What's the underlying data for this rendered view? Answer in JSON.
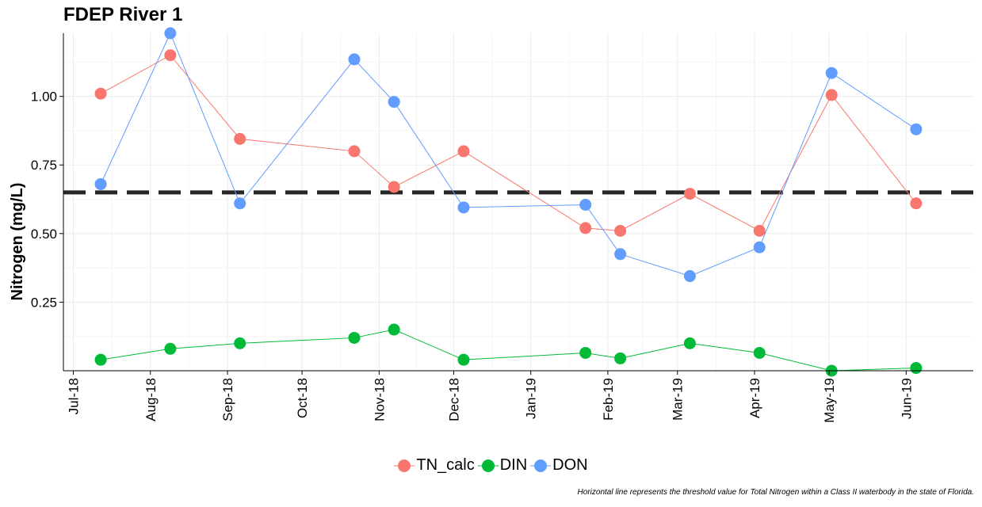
{
  "chart_data": {
    "type": "line",
    "title": "FDEP River 1",
    "xlabel": "",
    "ylabel": "Nitrogen (mg/L)",
    "caption": "Horizontal line represents the threshold value for Total Nitrogen within a Class II waterbody in the state of Florida.",
    "x_ticks": [
      "Jul-18",
      "Aug-18",
      "Sep-18",
      "Oct-18",
      "Nov-18",
      "Dec-18",
      "Jan-19",
      "Feb-19",
      "Mar-19",
      "Apr-19",
      "May-19",
      "Jun-19"
    ],
    "x_range": [
      "2018-06-27",
      "2019-06-28"
    ],
    "y_ticks": [
      "0.25",
      "0.50",
      "0.75",
      "1.00"
    ],
    "ylim": [
      0.0,
      1.23
    ],
    "threshold": 0.65,
    "grid": true,
    "legend_position": "bottom",
    "series": [
      {
        "name": "TN_calc",
        "color": "#F8766D",
        "x": [
          "2018-07-12",
          "2018-08-09",
          "2018-09-06",
          "2018-10-22",
          "2018-11-07",
          "2018-12-05",
          "2019-01-23",
          "2019-02-06",
          "2019-03-06",
          "2019-04-03",
          "2019-05-02",
          "2019-06-05"
        ],
        "y": [
          1.01,
          1.15,
          0.845,
          0.8,
          0.67,
          0.8,
          0.52,
          0.51,
          0.645,
          0.51,
          1.005,
          0.61
        ]
      },
      {
        "name": "DIN",
        "color": "#00BA38",
        "x": [
          "2018-07-12",
          "2018-08-09",
          "2018-09-06",
          "2018-10-22",
          "2018-11-07",
          "2018-12-05",
          "2019-01-23",
          "2019-02-06",
          "2019-03-06",
          "2019-04-03",
          "2019-05-02",
          "2019-06-05"
        ],
        "y": [
          0.04,
          0.08,
          0.1,
          0.12,
          0.15,
          0.04,
          0.065,
          0.045,
          0.1,
          0.065,
          0.0,
          0.01
        ]
      },
      {
        "name": "DON",
        "color": "#619CFF",
        "x": [
          "2018-07-12",
          "2018-08-09",
          "2018-09-06",
          "2018-10-22",
          "2018-11-07",
          "2018-12-05",
          "2019-01-23",
          "2019-02-06",
          "2019-03-06",
          "2019-04-03",
          "2019-05-02",
          "2019-06-05"
        ],
        "y": [
          0.68,
          1.23,
          0.61,
          1.135,
          0.98,
          0.595,
          0.605,
          0.425,
          0.345,
          0.45,
          1.085,
          0.88
        ]
      }
    ]
  }
}
